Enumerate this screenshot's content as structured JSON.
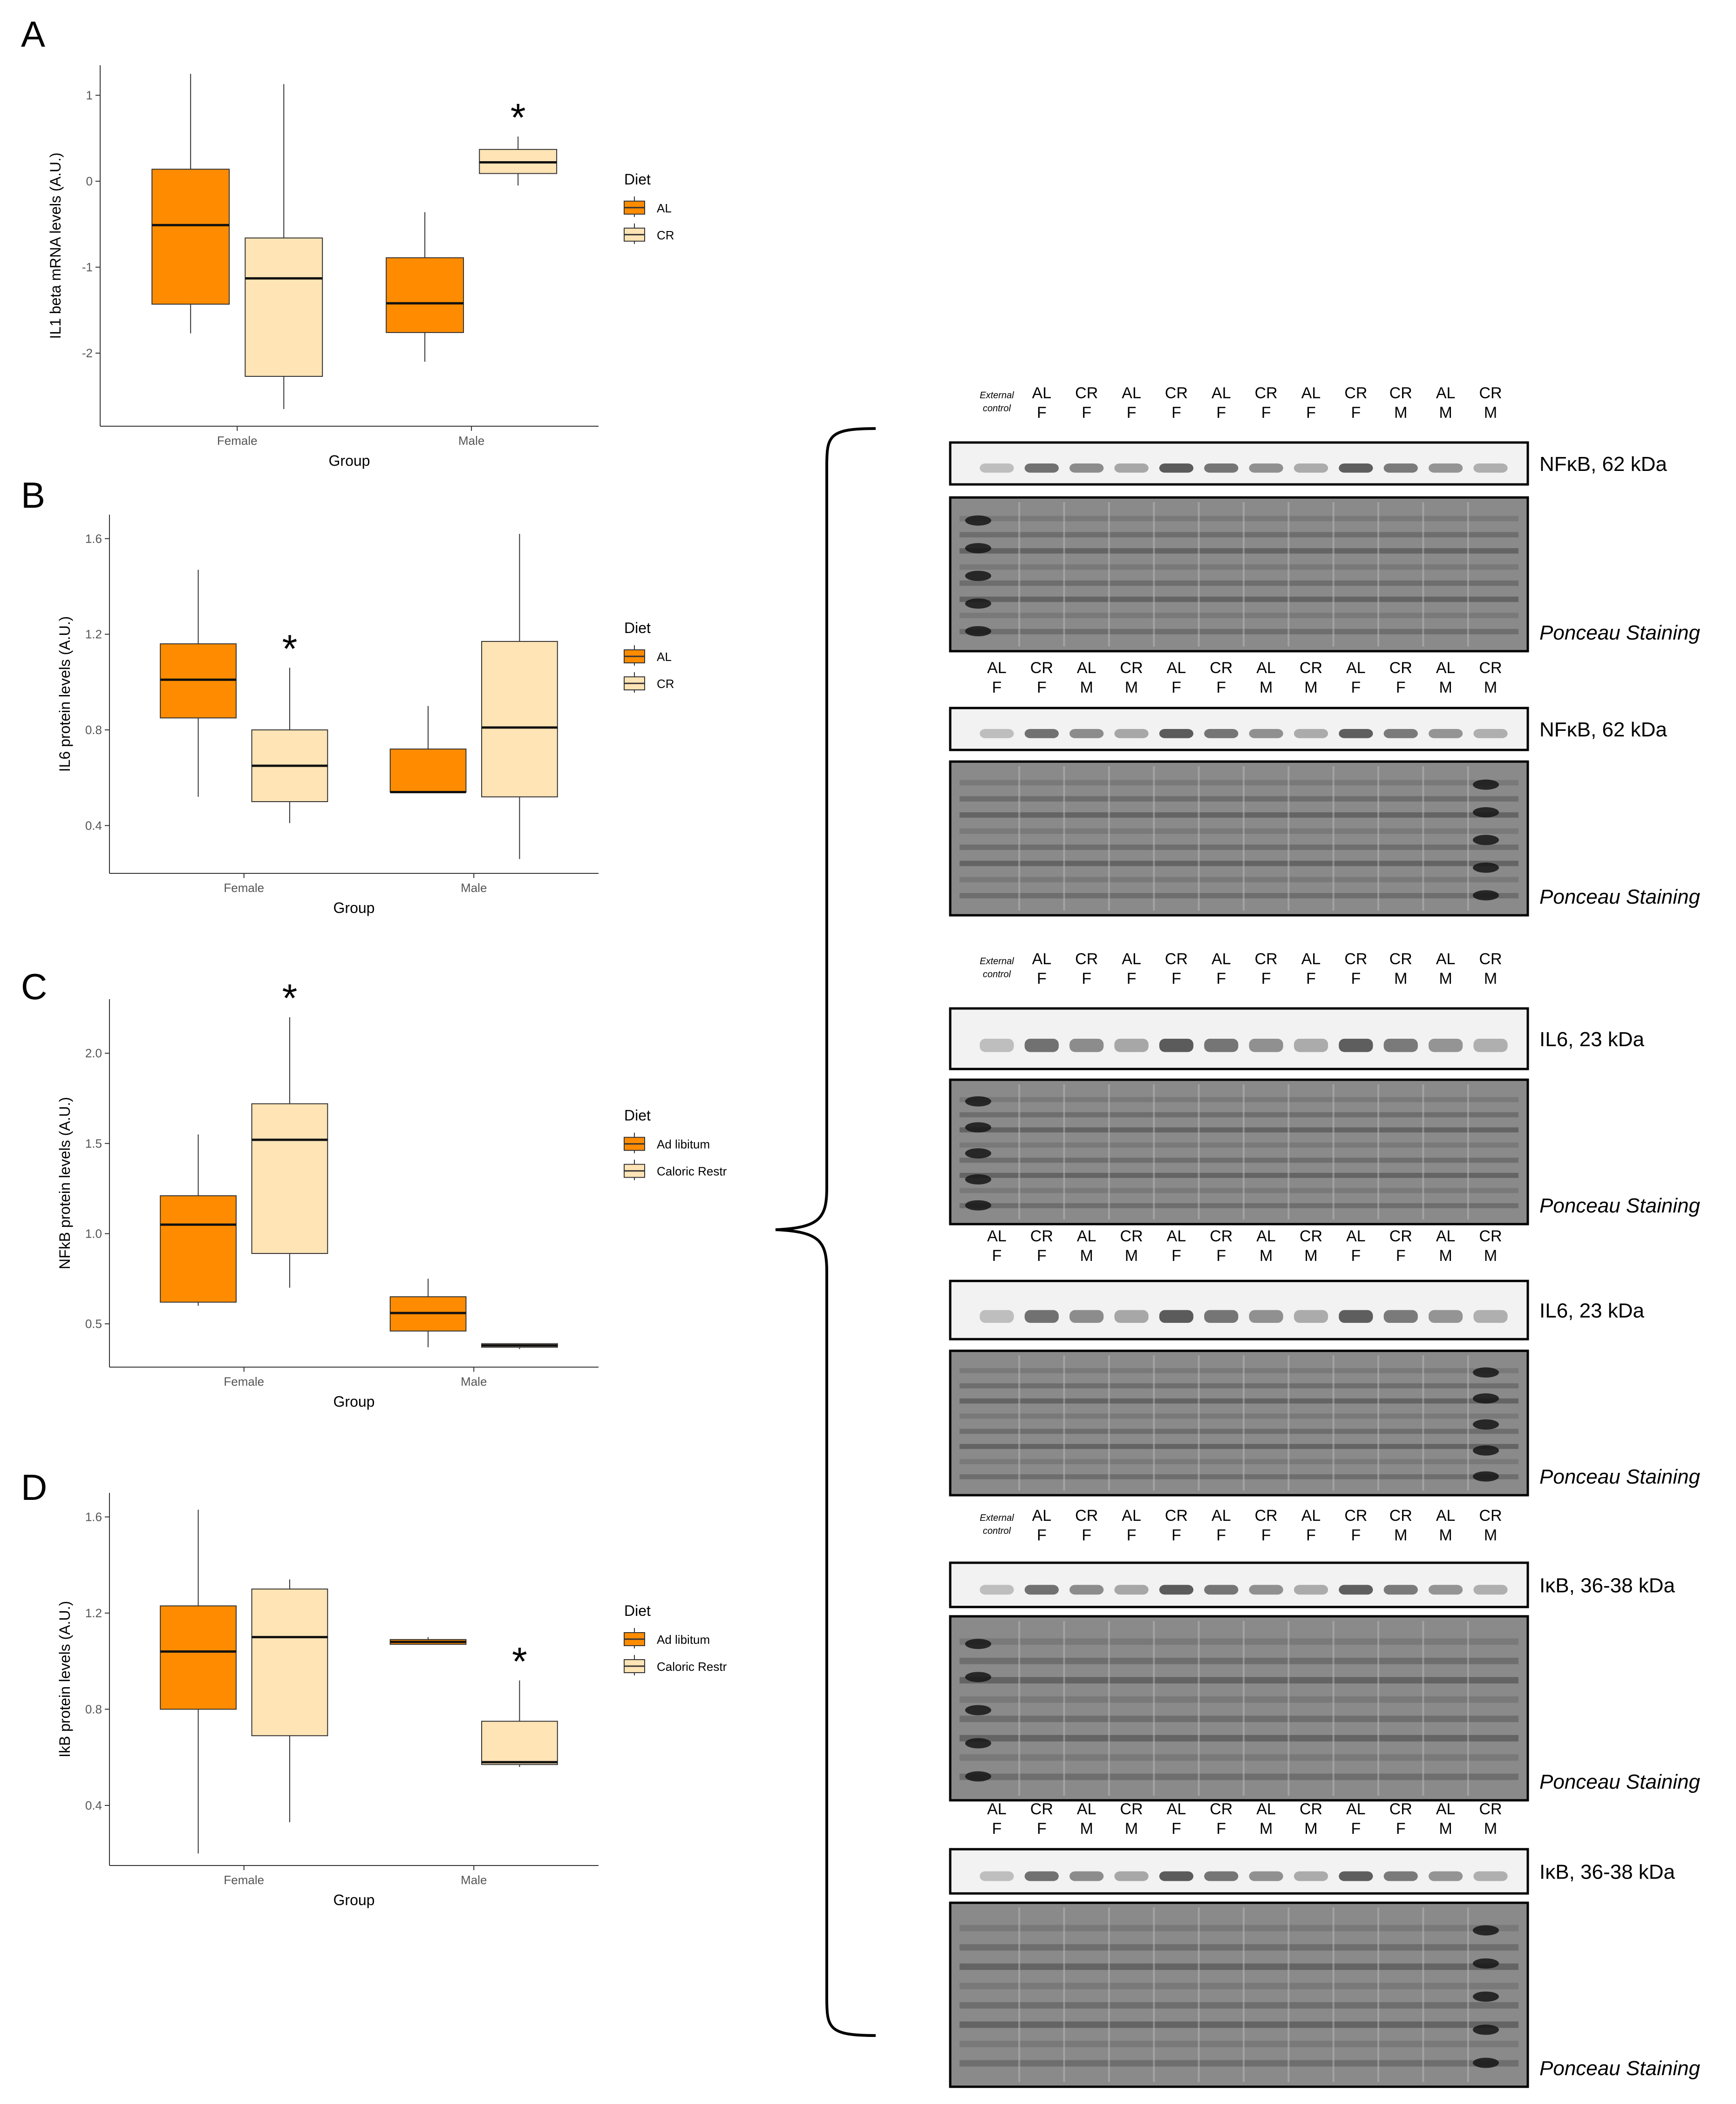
{
  "colors": {
    "al": "#FF8C00",
    "cr": "#FFE4B5",
    "axis": "#333333",
    "blot_light": "#f2f2f2",
    "ponceau_bg": "#8a8a8a"
  },
  "chart_data": [
    {
      "panel": "A",
      "type": "box",
      "xlabel": "Group",
      "ylabel": "IL1 beta mRNA levels (A.U.)",
      "categories": [
        "Female",
        "Male"
      ],
      "yticks": [
        "-2",
        "-1",
        "0",
        "1"
      ],
      "ylim": [
        -2.85,
        1.35
      ],
      "legend": {
        "title": "Diet",
        "labels": [
          "AL",
          "CR"
        ]
      },
      "series": [
        {
          "name": "AL",
          "boxes": [
            {
              "category": "Female",
              "min": -1.77,
              "q1": -1.43,
              "median": -0.51,
              "q3": 0.14,
              "max": 1.25
            },
            {
              "category": "Male",
              "min": -2.1,
              "q1": -1.76,
              "median": -1.42,
              "q3": -0.89,
              "max": -0.36
            }
          ]
        },
        {
          "name": "CR",
          "boxes": [
            {
              "category": "Female",
              "min": -2.65,
              "q1": -2.27,
              "median": -1.13,
              "q3": -0.66,
              "max": 1.13
            },
            {
              "category": "Male",
              "min": -0.05,
              "q1": 0.09,
              "median": 0.22,
              "q3": 0.37,
              "max": 0.52
            }
          ]
        }
      ],
      "annotations": [
        {
          "text": "*",
          "category": "Male",
          "series": "CR"
        }
      ]
    },
    {
      "panel": "B",
      "type": "box",
      "xlabel": "Group",
      "ylabel": "IL6 protein levels (A.U.)",
      "categories": [
        "Female",
        "Male"
      ],
      "yticks": [
        "0.4",
        "0.8",
        "1.2",
        "1.6"
      ],
      "ylim": [
        0.2,
        1.7
      ],
      "legend": {
        "title": "Diet",
        "labels": [
          "AL",
          "CR"
        ]
      },
      "series": [
        {
          "name": "AL",
          "boxes": [
            {
              "category": "Female",
              "min": 0.52,
              "q1": 0.85,
              "median": 1.01,
              "q3": 1.16,
              "max": 1.47
            },
            {
              "category": "Male",
              "min": 0.54,
              "q1": 0.54,
              "median": 0.54,
              "q3": 0.72,
              "max": 0.9
            }
          ]
        },
        {
          "name": "CR",
          "boxes": [
            {
              "category": "Female",
              "min": 0.41,
              "q1": 0.5,
              "median": 0.65,
              "q3": 0.8,
              "max": 1.06
            },
            {
              "category": "Male",
              "min": 0.26,
              "q1": 0.52,
              "median": 0.81,
              "q3": 1.17,
              "max": 1.62
            }
          ]
        }
      ],
      "annotations": [
        {
          "text": "*",
          "category": "Female",
          "series": "CR"
        }
      ]
    },
    {
      "panel": "C",
      "type": "box",
      "xlabel": "Group",
      "ylabel": "NFkB protein levels (A.U.)",
      "categories": [
        "Female",
        "Male"
      ],
      "yticks": [
        "0.5",
        "1.0",
        "1.5",
        "2.0"
      ],
      "ylim": [
        0.26,
        2.3
      ],
      "legend": {
        "title": "Diet",
        "labels": [
          "Ad libitum",
          "Caloric Restr"
        ]
      },
      "series": [
        {
          "name": "Ad libitum",
          "boxes": [
            {
              "category": "Female",
              "min": 0.6,
              "q1": 0.62,
              "median": 1.05,
              "q3": 1.21,
              "max": 1.55
            },
            {
              "category": "Male",
              "min": 0.37,
              "q1": 0.46,
              "median": 0.56,
              "q3": 0.65,
              "max": 0.75
            }
          ]
        },
        {
          "name": "Caloric Restr",
          "boxes": [
            {
              "category": "Female",
              "min": 0.7,
              "q1": 0.89,
              "median": 1.52,
              "q3": 1.72,
              "max": 2.2
            },
            {
              "category": "Male",
              "min": 0.36,
              "q1": 0.37,
              "median": 0.38,
              "q3": 0.39,
              "max": 0.39
            }
          ]
        }
      ],
      "annotations": [
        {
          "text": "*",
          "category": "Female",
          "series": "Caloric Restr"
        }
      ]
    },
    {
      "panel": "D",
      "type": "box",
      "xlabel": "Group",
      "ylabel": "IkB protein levels (A.U.)",
      "categories": [
        "Female",
        "Male"
      ],
      "yticks": [
        "0.4",
        "0.8",
        "1.2",
        "1.6"
      ],
      "ylim": [
        0.15,
        1.7
      ],
      "legend": {
        "title": "Diet",
        "labels": [
          "Ad libitum",
          "Caloric Restr"
        ]
      },
      "series": [
        {
          "name": "Ad libitum",
          "boxes": [
            {
              "category": "Female",
              "min": 0.2,
              "q1": 0.8,
              "median": 1.04,
              "q3": 1.23,
              "max": 1.63
            },
            {
              "category": "Male",
              "min": 1.07,
              "q1": 1.07,
              "median": 1.08,
              "q3": 1.09,
              "max": 1.1
            }
          ]
        },
        {
          "name": "Caloric Restr",
          "boxes": [
            {
              "category": "Female",
              "min": 0.33,
              "q1": 0.69,
              "median": 1.1,
              "q3": 1.3,
              "max": 1.34
            },
            {
              "category": "Male",
              "min": 0.56,
              "q1": 0.57,
              "median": 0.58,
              "q3": 0.75,
              "max": 0.92
            }
          ]
        }
      ],
      "annotations": [
        {
          "text": "*",
          "category": "Male",
          "series": "Caloric Restr"
        }
      ]
    }
  ],
  "blots": [
    {
      "lanes": [
        [
          "External",
          "control"
        ],
        [
          "AL",
          "F"
        ],
        [
          "CR",
          "F"
        ],
        [
          "AL",
          "F"
        ],
        [
          "CR",
          "F"
        ],
        [
          "AL",
          "F"
        ],
        [
          "CR",
          "F"
        ],
        [
          "AL",
          "F"
        ],
        [
          "CR",
          "F"
        ],
        [
          "CR",
          "M"
        ],
        [
          "AL",
          "M"
        ],
        [
          "CR",
          "M"
        ]
      ],
      "label": "NFκB, 62 kDa",
      "ponceau": "Ponceau Staining"
    },
    {
      "lanes": [
        [
          "AL",
          "F"
        ],
        [
          "CR",
          "F"
        ],
        [
          "AL",
          "M"
        ],
        [
          "CR",
          "M"
        ],
        [
          "AL",
          "F"
        ],
        [
          "CR",
          "F"
        ],
        [
          "AL",
          "M"
        ],
        [
          "CR",
          "M"
        ],
        [
          "AL",
          "F"
        ],
        [
          "CR",
          "F"
        ],
        [
          "AL",
          "M"
        ],
        [
          "CR",
          "M"
        ]
      ],
      "label": "NFκB, 62 kDa",
      "ponceau": "Ponceau Staining"
    },
    {
      "lanes": [
        [
          "External",
          "control"
        ],
        [
          "AL",
          "F"
        ],
        [
          "CR",
          "F"
        ],
        [
          "AL",
          "F"
        ],
        [
          "CR",
          "F"
        ],
        [
          "AL",
          "F"
        ],
        [
          "CR",
          "F"
        ],
        [
          "AL",
          "F"
        ],
        [
          "CR",
          "F"
        ],
        [
          "CR",
          "M"
        ],
        [
          "AL",
          "M"
        ],
        [
          "CR",
          "M"
        ]
      ],
      "label": "IL6, 23 kDa",
      "ponceau": "Ponceau Staining"
    },
    {
      "lanes": [
        [
          "AL",
          "F"
        ],
        [
          "CR",
          "F"
        ],
        [
          "AL",
          "M"
        ],
        [
          "CR",
          "M"
        ],
        [
          "AL",
          "F"
        ],
        [
          "CR",
          "F"
        ],
        [
          "AL",
          "M"
        ],
        [
          "CR",
          "M"
        ],
        [
          "AL",
          "F"
        ],
        [
          "CR",
          "F"
        ],
        [
          "AL",
          "M"
        ],
        [
          "CR",
          "M"
        ]
      ],
      "label": "IL6, 23 kDa",
      "ponceau": "Ponceau Staining"
    },
    {
      "lanes": [
        [
          "External",
          "control"
        ],
        [
          "AL",
          "F"
        ],
        [
          "CR",
          "F"
        ],
        [
          "AL",
          "F"
        ],
        [
          "CR",
          "F"
        ],
        [
          "AL",
          "F"
        ],
        [
          "CR",
          "F"
        ],
        [
          "AL",
          "F"
        ],
        [
          "CR",
          "F"
        ],
        [
          "CR",
          "M"
        ],
        [
          "AL",
          "M"
        ],
        [
          "CR",
          "M"
        ]
      ],
      "label": "IκB, 36-38 kDa",
      "ponceau": "Ponceau Staining"
    },
    {
      "lanes": [
        [
          "AL",
          "F"
        ],
        [
          "CR",
          "F"
        ],
        [
          "AL",
          "M"
        ],
        [
          "CR",
          "M"
        ],
        [
          "AL",
          "F"
        ],
        [
          "CR",
          "F"
        ],
        [
          "AL",
          "M"
        ],
        [
          "CR",
          "M"
        ],
        [
          "AL",
          "F"
        ],
        [
          "CR",
          "F"
        ],
        [
          "AL",
          "M"
        ],
        [
          "CR",
          "M"
        ]
      ],
      "label": "IκB, 36-38 kDa",
      "ponceau": "Ponceau Staining"
    }
  ]
}
